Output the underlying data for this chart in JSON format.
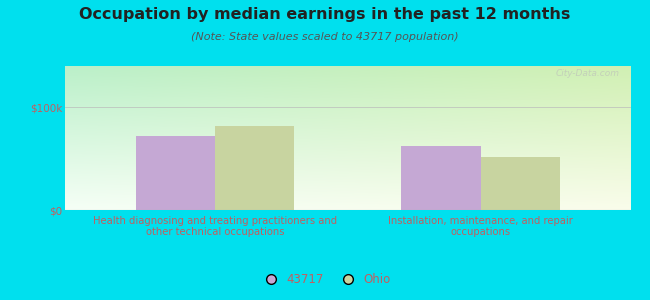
{
  "title": "Occupation by median earnings in the past 12 months",
  "subtitle": "(Note: State values scaled to 43717 population)",
  "categories": [
    "Health diagnosing and treating practitioners and\nother technical occupations",
    "Installation, maintenance, and repair\noccupations"
  ],
  "values_43717": [
    72000,
    62000
  ],
  "values_ohio": [
    82000,
    52000
  ],
  "ylim": [
    0,
    140000
  ],
  "yticks": [
    0,
    100000
  ],
  "ytick_labels": [
    "$0",
    "$100k"
  ],
  "bar_color_43717": "#c5a8d4",
  "bar_color_ohio": "#c8d4a0",
  "legend_label_43717": "43717",
  "legend_label_ohio": "Ohio",
  "bg_outer": "#00e0ee",
  "watermark": "City-Data.com",
  "bar_width": 0.28,
  "title_fontsize": 11.5,
  "subtitle_fontsize": 8,
  "tick_label_fontsize": 7.5,
  "xlabel_fontsize": 7.2,
  "text_color": "#c06060",
  "subtitle_color": "#555555",
  "title_color": "#222222"
}
